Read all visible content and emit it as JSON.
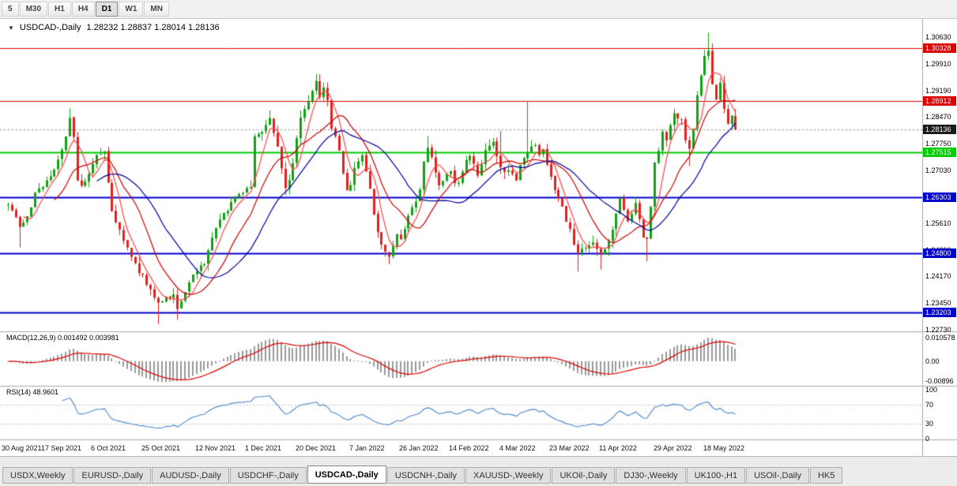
{
  "toolbar": {
    "periods": [
      {
        "label": "5",
        "active": false
      },
      {
        "label": "M30",
        "active": false
      },
      {
        "label": "H1",
        "active": false
      },
      {
        "label": "H4",
        "active": false
      },
      {
        "label": "D1",
        "active": true
      },
      {
        "label": "W1",
        "active": false
      },
      {
        "label": "MN",
        "active": false
      }
    ]
  },
  "chart": {
    "title_icon": "▼",
    "symbol_title": "USDCAD-,Daily",
    "ohlc": "1.28232 1.28837 1.28014 1.28136"
  },
  "chart_data": {
    "type": "candlestick",
    "symbol": "USDCAD",
    "timeframe": "Daily",
    "ohlc_line": {
      "open": "1.28232",
      "high": "1.28837",
      "low": "1.28014",
      "close": "1.28136"
    },
    "candle_up": "#13a113",
    "candle_down": "#dd2222",
    "bars_total": 190,
    "y_ticks": [
      "1.30630",
      "1.29910",
      "1.29190",
      "1.28470",
      "1.27750",
      "1.27030",
      "1.26310",
      "1.25610",
      "1.24890",
      "1.24170",
      "1.23450",
      "1.22730"
    ],
    "y_range": [
      1.2273,
      1.3063
    ],
    "x_labels": [
      {
        "bar": 0,
        "text": "30 Aug 2021"
      },
      {
        "bar": 14,
        "text": "17 Sep 2021"
      },
      {
        "bar": 27,
        "text": "6 Oct 2021"
      },
      {
        "bar": 40,
        "text": "25 Oct 2021"
      },
      {
        "bar": 54,
        "text": "12 Nov 2021"
      },
      {
        "bar": 67,
        "text": "1 Dec 2021"
      },
      {
        "bar": 80,
        "text": "20 Dec 2021"
      },
      {
        "bar": 94,
        "text": "7 Jan 2022"
      },
      {
        "bar": 107,
        "text": "26 Jan 2022"
      },
      {
        "bar": 120,
        "text": "14 Feb 2022"
      },
      {
        "bar": 133,
        "text": "4 Mar 2022"
      },
      {
        "bar": 146,
        "text": "23 Mar 2022"
      },
      {
        "bar": 159,
        "text": "11 Apr 2022"
      },
      {
        "bar": 173,
        "text": "29 Apr 2022"
      },
      {
        "bar": 186,
        "text": "18 May 2022"
      }
    ],
    "price_anchors": [
      [
        0,
        1.261
      ],
      [
        2,
        1.2575
      ],
      [
        3,
        1.2545
      ],
      [
        5,
        1.258
      ],
      [
        7,
        1.264
      ],
      [
        9,
        1.266
      ],
      [
        11,
        1.269
      ],
      [
        13,
        1.273
      ],
      [
        15,
        1.28
      ],
      [
        16,
        1.2845
      ],
      [
        17,
        1.279
      ],
      [
        18,
        1.268
      ],
      [
        19,
        1.2655
      ],
      [
        21,
        1.269
      ],
      [
        23,
        1.2745
      ],
      [
        25,
        1.2755
      ],
      [
        27,
        1.2595
      ],
      [
        29,
        1.254
      ],
      [
        31,
        1.249
      ],
      [
        33,
        1.245
      ],
      [
        35,
        1.2415
      ],
      [
        37,
        1.238
      ],
      [
        39,
        1.2345
      ],
      [
        41,
        1.236
      ],
      [
        43,
        1.237
      ],
      [
        44,
        1.233
      ],
      [
        45,
        1.2345
      ],
      [
        47,
        1.24
      ],
      [
        49,
        1.2435
      ],
      [
        51,
        1.2445
      ],
      [
        53,
        1.252
      ],
      [
        54,
        1.255
      ],
      [
        56,
        1.2585
      ],
      [
        58,
        1.2615
      ],
      [
        60,
        1.264
      ],
      [
        62,
        1.2655
      ],
      [
        63,
        1.2665
      ],
      [
        64,
        1.279
      ],
      [
        66,
        1.2805
      ],
      [
        68,
        1.284
      ],
      [
        69,
        1.281
      ],
      [
        70,
        1.2765
      ],
      [
        71,
        1.271
      ],
      [
        72,
        1.2655
      ],
      [
        73,
        1.268
      ],
      [
        74,
        1.272
      ],
      [
        75,
        1.279
      ],
      [
        76,
        1.2845
      ],
      [
        78,
        1.2885
      ],
      [
        80,
        1.294
      ],
      [
        81,
        1.2905
      ],
      [
        82,
        1.293
      ],
      [
        83,
        1.289
      ],
      [
        84,
        1.2815
      ],
      [
        85,
        1.279
      ],
      [
        86,
        1.2755
      ],
      [
        87,
        1.27
      ],
      [
        88,
        1.2645
      ],
      [
        89,
        1.267
      ],
      [
        90,
        1.2705
      ],
      [
        91,
        1.273
      ],
      [
        92,
        1.2745
      ],
      [
        93,
        1.27
      ],
      [
        94,
        1.265
      ],
      [
        95,
        1.259
      ],
      [
        96,
        1.254
      ],
      [
        97,
        1.2505
      ],
      [
        98,
        1.248
      ],
      [
        99,
        1.247
      ],
      [
        100,
        1.25
      ],
      [
        101,
        1.2525
      ],
      [
        102,
        1.2515
      ],
      [
        103,
        1.255
      ],
      [
        104,
        1.2585
      ],
      [
        105,
        1.261
      ],
      [
        106,
        1.2625
      ],
      [
        107,
        1.2655
      ],
      [
        108,
        1.2725
      ],
      [
        109,
        1.277
      ],
      [
        110,
        1.274
      ],
      [
        111,
        1.2695
      ],
      [
        112,
        1.2665
      ],
      [
        113,
        1.2675
      ],
      [
        114,
        1.27
      ],
      [
        115,
        1.2705
      ],
      [
        116,
        1.2675
      ],
      [
        117,
        1.2665
      ],
      [
        118,
        1.27
      ],
      [
        119,
        1.273
      ],
      [
        120,
        1.274
      ],
      [
        121,
        1.2715
      ],
      [
        122,
        1.269
      ],
      [
        123,
        1.272
      ],
      [
        124,
        1.2755
      ],
      [
        125,
        1.277
      ],
      [
        126,
        1.278
      ],
      [
        127,
        1.274
      ],
      [
        128,
        1.2705
      ],
      [
        129,
        1.2695
      ],
      [
        130,
        1.271
      ],
      [
        131,
        1.269
      ],
      [
        132,
        1.267
      ],
      [
        133,
        1.272
      ],
      [
        134,
        1.274
      ],
      [
        135,
        1.2745
      ],
      [
        136,
        1.2775
      ],
      [
        137,
        1.277
      ],
      [
        138,
        1.274
      ],
      [
        139,
        1.276
      ],
      [
        140,
        1.2725
      ],
      [
        141,
        1.2685
      ],
      [
        142,
        1.2655
      ],
      [
        143,
        1.2625
      ],
      [
        144,
        1.26
      ],
      [
        145,
        1.257
      ],
      [
        146,
        1.2545
      ],
      [
        147,
        1.251
      ],
      [
        148,
        1.2485
      ],
      [
        149,
        1.249
      ],
      [
        150,
        1.2495
      ],
      [
        151,
        1.2505
      ],
      [
        152,
        1.2512
      ],
      [
        153,
        1.249
      ],
      [
        154,
        1.247
      ],
      [
        155,
        1.249
      ],
      [
        156,
        1.2515
      ],
      [
        157,
        1.255
      ],
      [
        158,
        1.259
      ],
      [
        159,
        1.263
      ],
      [
        160,
        1.26
      ],
      [
        161,
        1.2565
      ],
      [
        162,
        1.2585
      ],
      [
        163,
        1.261
      ],
      [
        164,
        1.257
      ],
      [
        165,
        1.252
      ],
      [
        166,
        1.2515
      ],
      [
        167,
        1.261
      ],
      [
        168,
        1.2725
      ],
      [
        169,
        1.276
      ],
      [
        170,
        1.281
      ],
      [
        171,
        1.279
      ],
      [
        172,
        1.282
      ],
      [
        173,
        1.2855
      ],
      [
        174,
        1.2845
      ],
      [
        175,
        1.284
      ],
      [
        176,
        1.279
      ],
      [
        177,
        1.2755
      ],
      [
        178,
        1.281
      ],
      [
        179,
        1.29
      ],
      [
        180,
        1.296
      ],
      [
        181,
        1.301
      ],
      [
        182,
        1.3025
      ],
      [
        183,
        1.2935
      ],
      [
        184,
        1.2895
      ],
      [
        185,
        1.2945
      ],
      [
        186,
        1.287
      ],
      [
        187,
        1.283
      ],
      [
        188,
        1.285
      ],
      [
        189,
        1.2814
      ]
    ],
    "wick_overrides": [
      [
        3,
        "low",
        1.2495
      ],
      [
        16,
        "high",
        1.287
      ],
      [
        39,
        "low",
        1.2288
      ],
      [
        44,
        "low",
        1.23
      ],
      [
        64,
        "high",
        1.28
      ],
      [
        68,
        "high",
        1.2865
      ],
      [
        80,
        "high",
        1.2964
      ],
      [
        99,
        "low",
        1.245
      ],
      [
        109,
        "high",
        1.2796
      ],
      [
        128,
        "high",
        1.281
      ],
      [
        135,
        "high",
        1.289
      ],
      [
        148,
        "low",
        1.243
      ],
      [
        154,
        "low",
        1.2435
      ],
      [
        166,
        "low",
        1.2458
      ],
      [
        177,
        "low",
        1.2715
      ],
      [
        182,
        "high",
        1.3075
      ],
      [
        183,
        "high",
        1.304
      ]
    ],
    "levels": [
      {
        "value": 1.30328,
        "label": "1.30328",
        "color": "#dd0000",
        "width": 1
      },
      {
        "value": 1.28912,
        "label": "1.28912",
        "color": "#dd0000",
        "width": 1
      },
      {
        "value": 1.27515,
        "label": "1.27515",
        "color": "#00cc00",
        "width": 2
      },
      {
        "value": 1.26303,
        "label": "1.26303",
        "color": "#0000cc",
        "width": 2
      },
      {
        "value": 1.248,
        "label": "1.24800",
        "color": "#0000cc",
        "width": 2
      },
      {
        "value": 1.23203,
        "label": "1.23203",
        "color": "#0000cc",
        "width": 2
      }
    ],
    "current_price": {
      "value": 1.28136,
      "label": "1.28136",
      "color": "#1a1a1a"
    },
    "moving_averages": [
      {
        "period": 5,
        "color": "#ff4444"
      },
      {
        "period": 13,
        "color": "#cc0000"
      },
      {
        "period": 24,
        "color": "#0000a0"
      }
    ],
    "macd": {
      "label": "MACD(12,26,9) 0.001492 0.003981",
      "params": [
        12,
        26,
        9
      ],
      "values_display": [
        "0.001492",
        "0.003981"
      ],
      "hist_color": "#999999",
      "signal_color": "#dd0000",
      "y_ticks": [
        {
          "value": 0.010578,
          "text": "0.010578"
        },
        {
          "value": 0,
          "text": "0.00"
        },
        {
          "value": -0.00896,
          "text": "-0.00896"
        }
      ]
    },
    "rsi": {
      "label": "RSI(14) 48.9601",
      "period": 14,
      "value_display": "48.9601",
      "line_color": "#4a86c8",
      "level_lines": [
        70,
        30
      ],
      "y_ticks": [
        {
          "value": 100,
          "text": "100"
        },
        {
          "value": 70,
          "text": "70"
        },
        {
          "value": 30,
          "text": "30"
        },
        {
          "value": 0,
          "text": "0"
        }
      ]
    }
  },
  "tabs": {
    "items": [
      {
        "label": "USDX,Weekly",
        "active": false
      },
      {
        "label": "EURUSD-,Daily",
        "active": false
      },
      {
        "label": "AUDUSD-,Daily",
        "active": false
      },
      {
        "label": "USDCHF-,Daily",
        "active": false
      },
      {
        "label": "USDCAD-,Daily",
        "active": true
      },
      {
        "label": "USDCNH-,Daily",
        "active": false
      },
      {
        "label": "XAUUSD-,Weekly",
        "active": false
      },
      {
        "label": "UKOil-,Daily",
        "active": false
      },
      {
        "label": "DJ30-,Weekly",
        "active": false
      },
      {
        "label": "UK100-,H1",
        "active": false
      },
      {
        "label": "USOil-,Daily",
        "active": false
      },
      {
        "label": "HK5",
        "active": false
      }
    ]
  }
}
